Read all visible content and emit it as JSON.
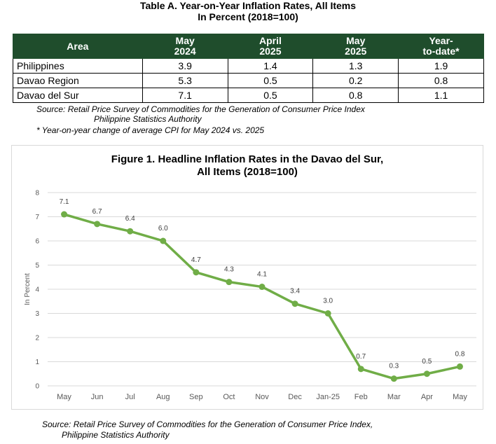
{
  "table": {
    "title_line1": "Table A. Year-on-Year Inflation Rates, All Items",
    "title_line2": "In Percent (2018=100)",
    "headers": [
      {
        "l1": "Area",
        "l2": ""
      },
      {
        "l1": "May",
        "l2": "2024"
      },
      {
        "l1": "April",
        "l2": "2025"
      },
      {
        "l1": "May",
        "l2": "2025"
      },
      {
        "l1": "Year-",
        "l2": "to-date*"
      }
    ],
    "rows": [
      {
        "area": "Philippines",
        "may2024": "3.9",
        "apr2025": "1.4",
        "may2025": "1.3",
        "ytd": "1.9"
      },
      {
        "area": "Davao Region",
        "may2024": "5.3",
        "apr2025": "0.5",
        "may2025": "0.2",
        "ytd": "0.8"
      },
      {
        "area": "Davao del Sur",
        "may2024": "7.1",
        "apr2025": "0.5",
        "may2025": "0.8",
        "ytd": "1.1"
      }
    ],
    "source_line1": "Source: Retail Price Survey of Commodities for the Generation of Consumer Price Index",
    "source_line2": "Philippine Statistics Authority",
    "footnote": "* Year-on-year change of average CPI for May 2024 vs. 2025",
    "header_color": "#1f4d2c"
  },
  "figure": {
    "source_line1": "Source: Retail Price Survey of Commodities for the Generation of Consumer Price Index,",
    "source_line2": "Philippine Statistics Authority"
  },
  "chart_data": {
    "type": "line",
    "title_line1": "Figure 1. Headline Inflation Rates in the Davao del Sur,",
    "title_line2": "All Items (2018=100)",
    "ylabel": "In Percent",
    "xlabel": "",
    "categories": [
      "May",
      "Jun",
      "Jul",
      "Aug",
      "Sep",
      "Oct",
      "Nov",
      "Dec",
      "Jan-25",
      "Feb",
      "Mar",
      "Apr",
      "May"
    ],
    "values": [
      7.1,
      6.7,
      6.4,
      6.0,
      4.7,
      4.3,
      4.1,
      3.4,
      3.0,
      0.7,
      0.3,
      0.5,
      0.8
    ],
    "data_labels": [
      "7.1",
      "6.7",
      "6.4",
      "6.0",
      "4.7",
      "4.3",
      "4.1",
      "3.4",
      "3.0",
      "0.7",
      "0.3",
      "0.5",
      "0.8"
    ],
    "ylim": [
      0,
      8
    ],
    "yticks": [
      0,
      1,
      2,
      3,
      4,
      5,
      6,
      7,
      8
    ],
    "grid": true,
    "legend": "none",
    "line_color": "#70ad47"
  }
}
